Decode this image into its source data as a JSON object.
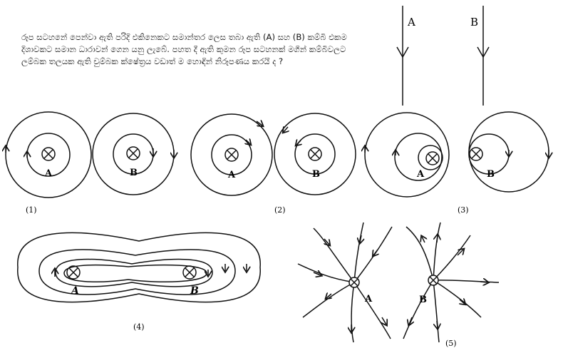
{
  "question": {
    "text": "රූප සටහනේ පෙන්වා ඇති පරිදි එකිනෙකට සමාන්තර ලෙස තබා ඇති (A) සහ (B) කම්බි එකම දිශාවකට සමාන ධාරාවන් ගෙන යනු ලැබේ. පහත දී ඇති කුමන රූප සටහනක් මගින් කම්බිවලට ලම්බක තලයක ඇති චුම්බක ක්ෂේත්‍රය වඩාත් ම හොඳින් නිරූපණය කරයි ද ?"
  },
  "wires": {
    "wire_a_label": "A",
    "wire_b_label": "B"
  },
  "options": [
    {
      "number": "(1)",
      "label_a": "A",
      "label_b": "B"
    },
    {
      "number": "(2)",
      "label_a": "A",
      "label_b": "B"
    },
    {
      "number": "(3)",
      "label_a": "A",
      "label_b": "B"
    },
    {
      "number": "(4)",
      "label_a": "A",
      "label_b": "B"
    },
    {
      "number": "(5)",
      "label_a": "A",
      "label_b": "B"
    }
  ]
}
